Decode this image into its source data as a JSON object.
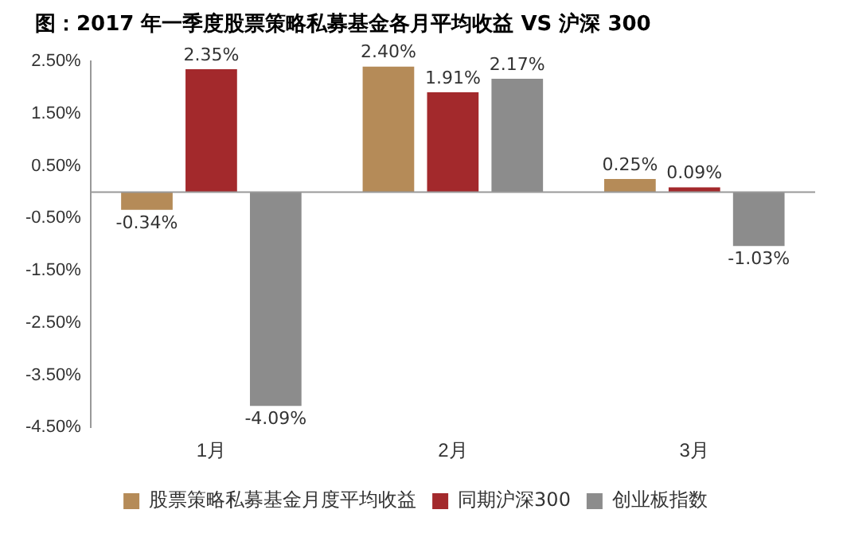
{
  "chart_data": {
    "type": "bar",
    "title": "图：2017 年一季度股票策略私募基金各月平均收益 VS 沪深 300",
    "categories": [
      "1月",
      "2月",
      "3月"
    ],
    "series": [
      {
        "name": "股票策略私募基金月度平均收益",
        "color": "#b58b58",
        "values": [
          -0.34,
          2.4,
          0.25
        ],
        "value_labels": [
          "-0.34%",
          "2.40%",
          "0.25%"
        ]
      },
      {
        "name": "同期沪深300",
        "color": "#a3292c",
        "values": [
          2.35,
          1.91,
          0.09
        ],
        "value_labels": [
          "2.35%",
          "1.91%",
          "0.09%"
        ]
      },
      {
        "name": "创业板指数",
        "color": "#8c8c8c",
        "values": [
          -4.09,
          2.17,
          -1.03
        ],
        "value_labels": [
          "-4.09%",
          "2.17%",
          "-1.03%"
        ]
      }
    ],
    "ylim": [
      -4.5,
      2.5
    ],
    "yticks": [
      {
        "value": 2.5,
        "label": "2.50%"
      },
      {
        "value": 1.5,
        "label": "1.50%"
      },
      {
        "value": 0.5,
        "label": "0.50%"
      },
      {
        "value": -0.5,
        "label": "-0.50%"
      },
      {
        "value": -1.5,
        "label": "-1.50%"
      },
      {
        "value": -2.5,
        "label": "-2.50%"
      },
      {
        "value": -3.5,
        "label": "-3.50%"
      },
      {
        "value": -4.5,
        "label": "-4.50%"
      }
    ],
    "grid": false,
    "legend": "bottom"
  }
}
